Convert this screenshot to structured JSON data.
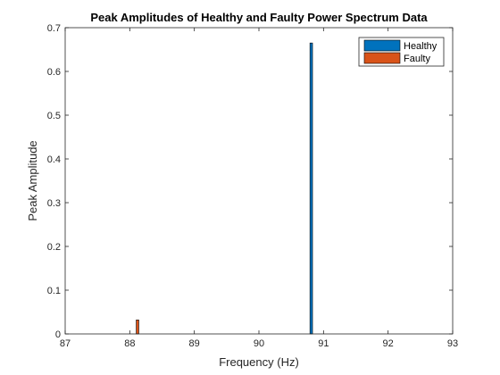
{
  "chart_data": {
    "type": "bar",
    "title": "Peak Amplitudes of Healthy and Faulty Power Spectrum Data",
    "xlabel": "Frequency (Hz)",
    "ylabel": "Peak Amplitude",
    "xlim": [
      87,
      93
    ],
    "ylim": [
      0,
      0.7
    ],
    "xticks": [
      "87",
      "88",
      "89",
      "90",
      "91",
      "92",
      "93"
    ],
    "yticks": [
      "0",
      "0.1",
      "0.2",
      "0.3",
      "0.4",
      "0.5",
      "0.6",
      "0.7"
    ],
    "grid": false,
    "legend_position": "top-right",
    "series": [
      {
        "name": "Healthy",
        "color": "#0072BD",
        "x": [
          90.81
        ],
        "values": [
          0.665
        ],
        "bar_width": 0.04
      },
      {
        "name": "Faulty",
        "color": "#D95319",
        "x": [
          88.12
        ],
        "values": [
          0.032
        ],
        "bar_width": 0.04
      }
    ]
  }
}
